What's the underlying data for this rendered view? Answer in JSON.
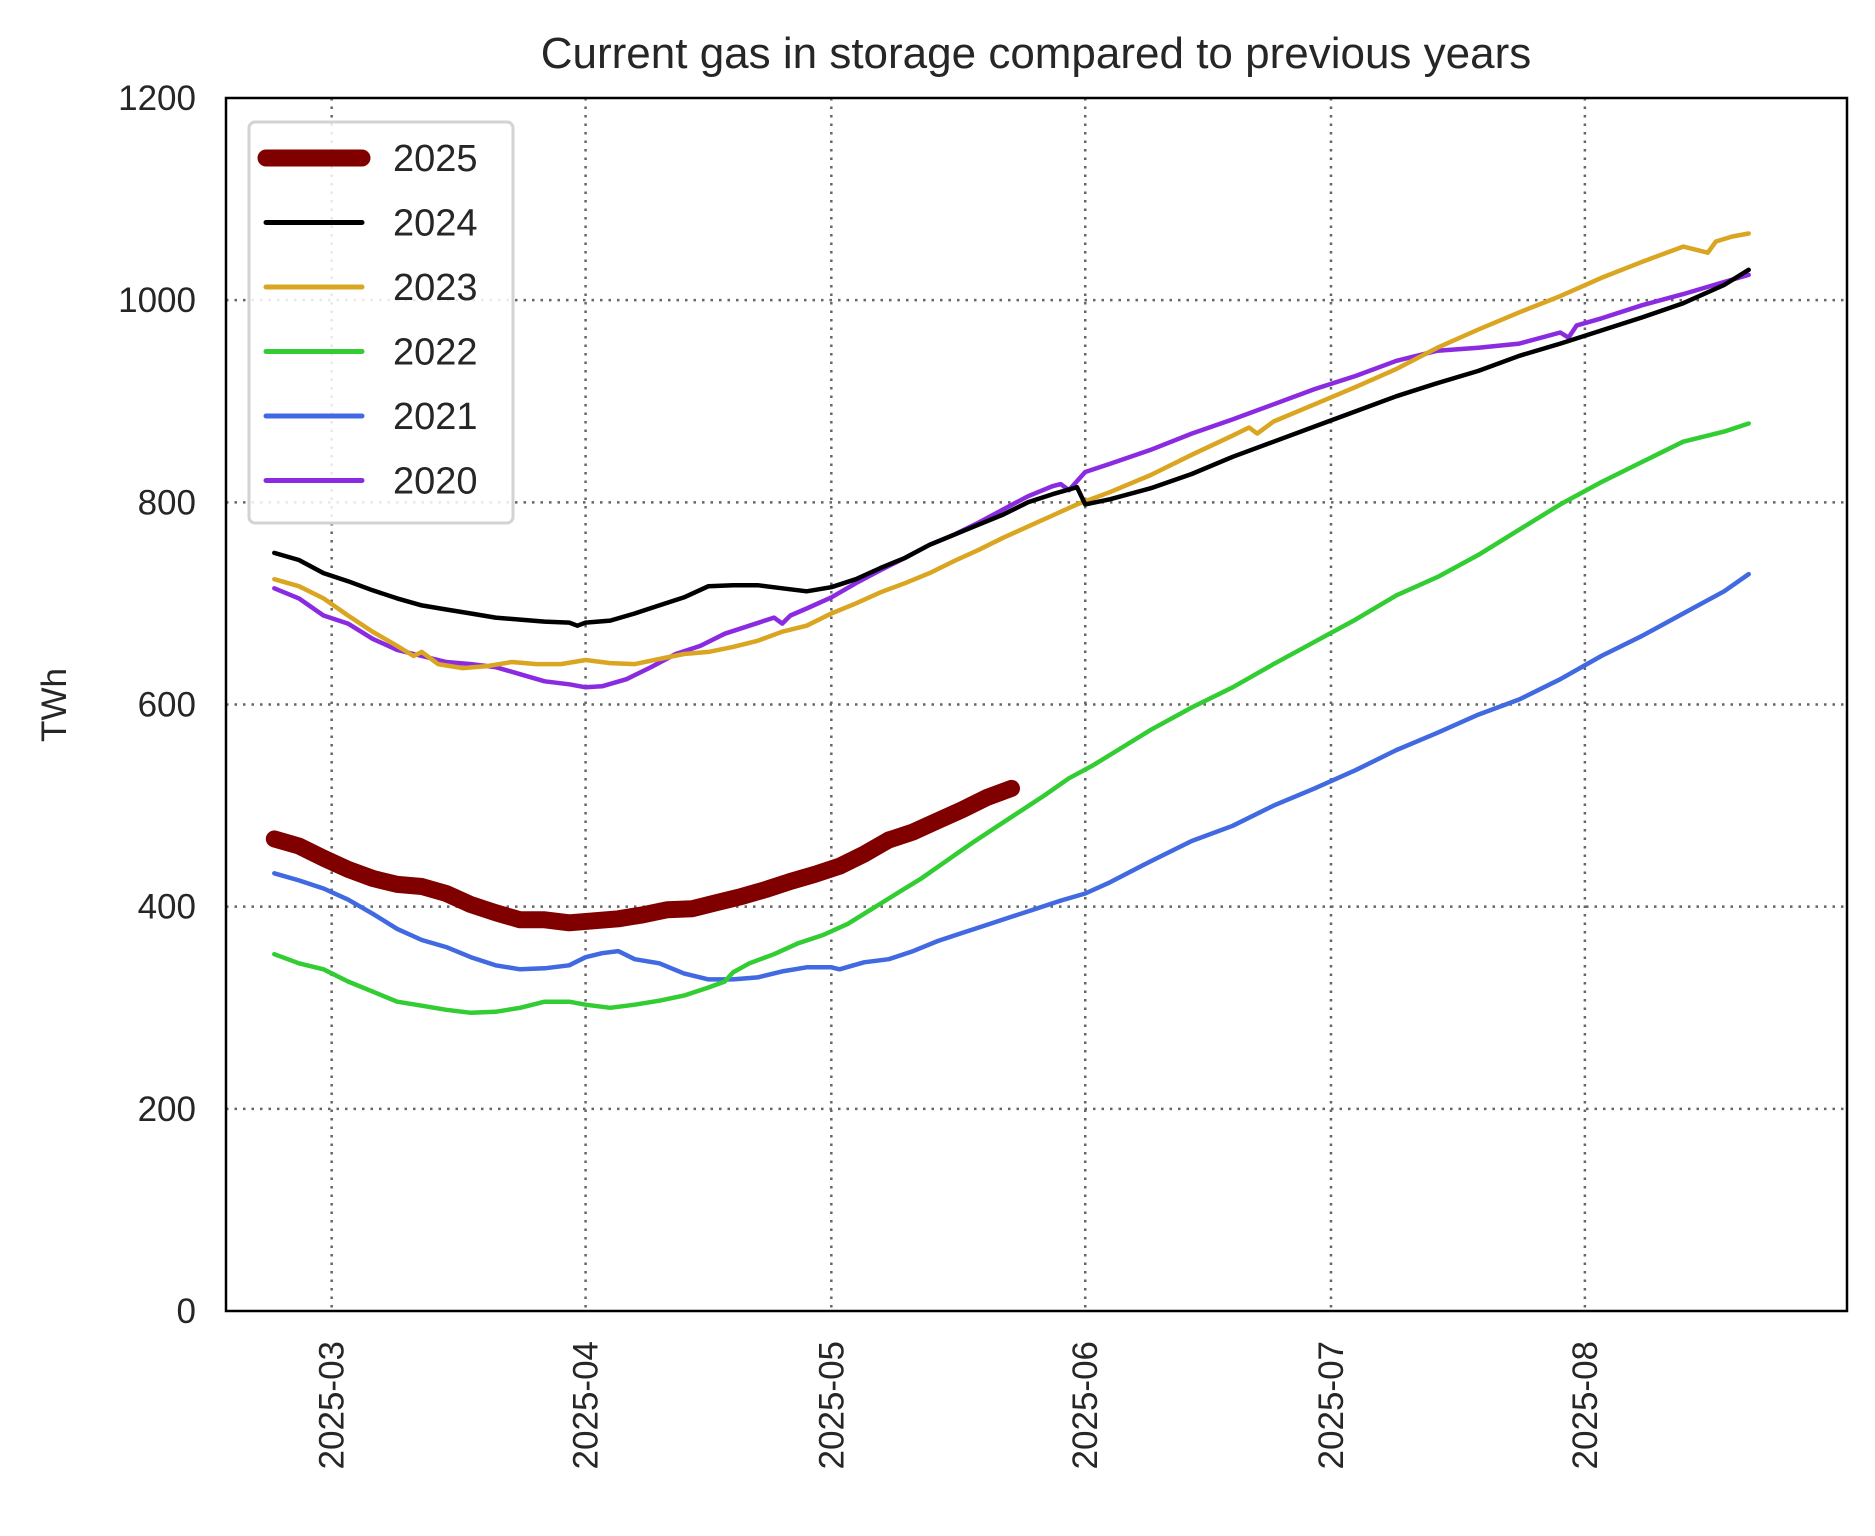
{
  "chart_data": {
    "type": "line",
    "title": "Current gas in storage compared to previous years",
    "xlabel": "",
    "ylabel": "TWh",
    "ylim": [
      0,
      1200
    ],
    "yticks": [
      0,
      200,
      400,
      600,
      800,
      1000,
      1200
    ],
    "ytick_labels": [
      "0",
      "200",
      "400",
      "600",
      "800",
      "1000",
      "1200"
    ],
    "x_unit": "days since 2025-03-01",
    "xlim": [
      -12.9,
      185
    ],
    "xticks": [
      0,
      31,
      61,
      92,
      122,
      153
    ],
    "xtick_labels": [
      "2025-03",
      "2025-04",
      "2025-05",
      "2025-06",
      "2025-07",
      "2025-08"
    ],
    "grid": true,
    "grid_style": "dotted",
    "legend_position": "upper-left",
    "series": [
      {
        "name": "2025",
        "color": "#800000",
        "linewidth": "thick",
        "x": [
          -7,
          -4,
          -1,
          2,
          5,
          8,
          11,
          14,
          17,
          20,
          23,
          26,
          29,
          32,
          35,
          38,
          41,
          44,
          47,
          50,
          53,
          56,
          59,
          62,
          65,
          68,
          71,
          74,
          77,
          80,
          83
        ],
        "y": [
          467,
          460,
          448,
          437,
          428,
          422,
          420,
          413,
          402,
          394,
          387,
          387,
          384,
          386,
          388,
          392,
          397,
          398,
          404,
          410,
          417,
          425,
          432,
          440,
          452,
          466,
          474,
          485,
          496,
          508,
          517
        ]
      },
      {
        "name": "2024",
        "color": "#000000",
        "linewidth": "normal",
        "x": [
          -7,
          -4,
          -1,
          2,
          5,
          8,
          11,
          14,
          17,
          20,
          23,
          26,
          29,
          30,
          31,
          34,
          37,
          40,
          43,
          46,
          49,
          52,
          55,
          58,
          61,
          64,
          67,
          70,
          73,
          76,
          79,
          82,
          85,
          88,
          91,
          92,
          95,
          100,
          105,
          110,
          115,
          120,
          125,
          130,
          135,
          140,
          145,
          150,
          155,
          160,
          165,
          170,
          173
        ],
        "y": [
          750,
          743,
          730,
          722,
          713,
          705,
          698,
          694,
          690,
          686,
          684,
          682,
          681,
          678,
          681,
          683,
          690,
          698,
          706,
          717,
          718,
          718,
          715,
          712,
          716,
          724,
          735,
          745,
          758,
          768,
          778,
          788,
          800,
          808,
          815,
          798,
          803,
          814,
          828,
          845,
          860,
          875,
          890,
          905,
          918,
          930,
          945,
          957,
          970,
          983,
          997,
          1015,
          1030
        ]
      },
      {
        "name": "2023",
        "color": "#DAA520",
        "linewidth": "normal",
        "x": [
          -7,
          -4,
          -1,
          2,
          5,
          8,
          10,
          11,
          13,
          16,
          19,
          22,
          25,
          28,
          31,
          34,
          37,
          40,
          43,
          46,
          49,
          52,
          55,
          58,
          61,
          64,
          67,
          70,
          73,
          76,
          79,
          82,
          85,
          88,
          91,
          95,
          100,
          105,
          110,
          112,
          113,
          115,
          120,
          125,
          130,
          135,
          140,
          145,
          150,
          155,
          160,
          165,
          168,
          169,
          171,
          173
        ],
        "y": [
          724,
          717,
          705,
          688,
          672,
          658,
          648,
          652,
          640,
          636,
          638,
          642,
          640,
          640,
          644,
          641,
          640,
          645,
          650,
          652,
          657,
          663,
          672,
          678,
          690,
          700,
          711,
          720,
          730,
          742,
          753,
          765,
          776,
          787,
          798,
          810,
          827,
          847,
          866,
          874,
          868,
          880,
          897,
          914,
          932,
          953,
          971,
          988,
          1004,
          1022,
          1038,
          1053,
          1047,
          1058,
          1063,
          1066
        ]
      },
      {
        "name": "2022",
        "color": "#32CD32",
        "linewidth": "normal",
        "x": [
          -7,
          -4,
          -1,
          2,
          5,
          8,
          11,
          14,
          17,
          20,
          23,
          26,
          29,
          31,
          34,
          37,
          40,
          43,
          46,
          48,
          49,
          51,
          54,
          57,
          60,
          63,
          66,
          69,
          72,
          75,
          78,
          81,
          84,
          87,
          90,
          93,
          96,
          100,
          105,
          110,
          115,
          120,
          125,
          130,
          135,
          140,
          145,
          150,
          155,
          160,
          165,
          170,
          173
        ],
        "y": [
          353,
          344,
          338,
          326,
          316,
          306,
          302,
          298,
          295,
          296,
          300,
          306,
          306,
          303,
          300,
          303,
          307,
          312,
          320,
          326,
          335,
          344,
          353,
          364,
          372,
          383,
          398,
          413,
          428,
          445,
          462,
          478,
          494,
          510,
          527,
          540,
          555,
          575,
          597,
          617,
          640,
          662,
          684,
          708,
          726,
          748,
          773,
          798,
          820,
          840,
          860,
          870,
          878
        ]
      },
      {
        "name": "2021",
        "color": "#4169E1",
        "linewidth": "normal",
        "x": [
          -7,
          -4,
          -1,
          2,
          5,
          8,
          11,
          14,
          17,
          20,
          23,
          26,
          29,
          31,
          33,
          35,
          37,
          40,
          43,
          46,
          49,
          52,
          55,
          58,
          61,
          62,
          65,
          68,
          71,
          74,
          77,
          80,
          83,
          86,
          89,
          92,
          95,
          100,
          105,
          110,
          115,
          120,
          125,
          130,
          135,
          140,
          145,
          150,
          155,
          160,
          165,
          170,
          173
        ],
        "y": [
          433,
          426,
          418,
          407,
          393,
          378,
          367,
          360,
          350,
          342,
          338,
          339,
          342,
          350,
          354,
          356,
          348,
          344,
          334,
          328,
          328,
          330,
          336,
          340,
          340,
          338,
          345,
          348,
          356,
          366,
          374,
          382,
          390,
          398,
          406,
          413,
          424,
          445,
          465,
          480,
          500,
          517,
          535,
          555,
          572,
          590,
          605,
          625,
          648,
          668,
          690,
          712,
          729
        ]
      },
      {
        "name": "2020",
        "color": "#8A2BE2",
        "linewidth": "normal",
        "x": [
          -7,
          -4,
          -1,
          2,
          5,
          8,
          11,
          14,
          17,
          20,
          23,
          26,
          29,
          31,
          33,
          36,
          39,
          42,
          45,
          48,
          51,
          54,
          55,
          56,
          58,
          61,
          64,
          67,
          70,
          73,
          76,
          79,
          82,
          85,
          88,
          89,
          90,
          92,
          95,
          100,
          105,
          110,
          115,
          120,
          125,
          130,
          135,
          140,
          145,
          150,
          151,
          152,
          155,
          160,
          165,
          170,
          173
        ],
        "y": [
          715,
          705,
          688,
          680,
          665,
          654,
          648,
          642,
          640,
          637,
          630,
          623,
          620,
          617,
          618,
          625,
          637,
          650,
          658,
          670,
          678,
          686,
          680,
          688,
          695,
          706,
          720,
          733,
          745,
          758,
          768,
          780,
          793,
          806,
          816,
          818,
          812,
          830,
          838,
          852,
          868,
          882,
          897,
          912,
          925,
          940,
          950,
          953,
          957,
          968,
          963,
          975,
          982,
          995,
          1006,
          1018,
          1025
        ]
      }
    ]
  }
}
